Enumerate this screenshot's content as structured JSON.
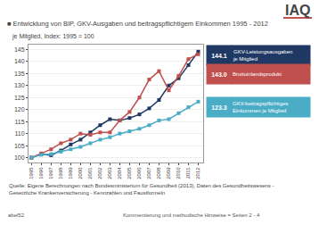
{
  "chart_data": {
    "type": "line",
    "title": "■ Entwicklung von BIP, GKV-Ausgaben und beitragspflichtigem Einkommen 1995 - 2012",
    "subtitle": "je Mitglied, Index: 1995 = 100",
    "x": [
      1995,
      1996,
      1997,
      1998,
      1999,
      2000,
      2001,
      2002,
      2003,
      2004,
      2005,
      2006,
      2007,
      2008,
      2009,
      2010,
      2011,
      2012
    ],
    "series": [
      {
        "name": "GKV-Leistungsausgaben\nje Mitglied",
        "color": "#1f3864",
        "values": [
          100,
          101.5,
          101.0,
          103.0,
          105.5,
          107.5,
          110.5,
          113.5,
          116.0,
          115.5,
          116.5,
          118.0,
          120.5,
          124.0,
          130.0,
          133.0,
          138.5,
          144.1
        ]
      },
      {
        "name": "Bruttoinlandsprodukt",
        "color": "#c0504d",
        "values": [
          100,
          101.8,
          103.5,
          106.0,
          107.5,
          110.0,
          109.5,
          110.5,
          110.5,
          115.5,
          119.0,
          125.0,
          132.5,
          136.0,
          128.0,
          134.0,
          141.0,
          143.0
        ]
      },
      {
        "name": "GKV-beitragspflichtiges\nEinkommen je Mitglied",
        "color": "#4bacc6",
        "values": [
          100,
          101.2,
          101.5,
          102.5,
          103.5,
          104.5,
          106.0,
          107.5,
          108.5,
          110.0,
          111.0,
          112.0,
          113.5,
          115.5,
          116.0,
          118.5,
          121.0,
          123.3
        ]
      }
    ],
    "xlim": [
      1994.7,
      2012.5
    ],
    "xticks": [
      1995,
      1996,
      1997,
      1998,
      1999,
      2000,
      2001,
      2002,
      2003,
      2004,
      2005,
      2006,
      2007,
      2008,
      2009,
      2010,
      2011,
      2012
    ],
    "ylim": [
      98,
      147
    ],
    "yticks": [
      100,
      105,
      110,
      115,
      120,
      125,
      130,
      135,
      140,
      145
    ],
    "grid": true,
    "marker": "square",
    "annotations": [
      "IAQ",
      "144.1",
      "143.0",
      "123.3",
      "Quelle: Eigene Berechnungen nach Bundesministerium für Gesundheit (2013), Daten des Gesundheitswesens -",
      "Gesetzliche Krankenversicherung - Kennzahlen und Faustformeln",
      "abel52",
      "Kommentierung und methodische Hinweise = Seiten 2 - 4"
    ]
  }
}
